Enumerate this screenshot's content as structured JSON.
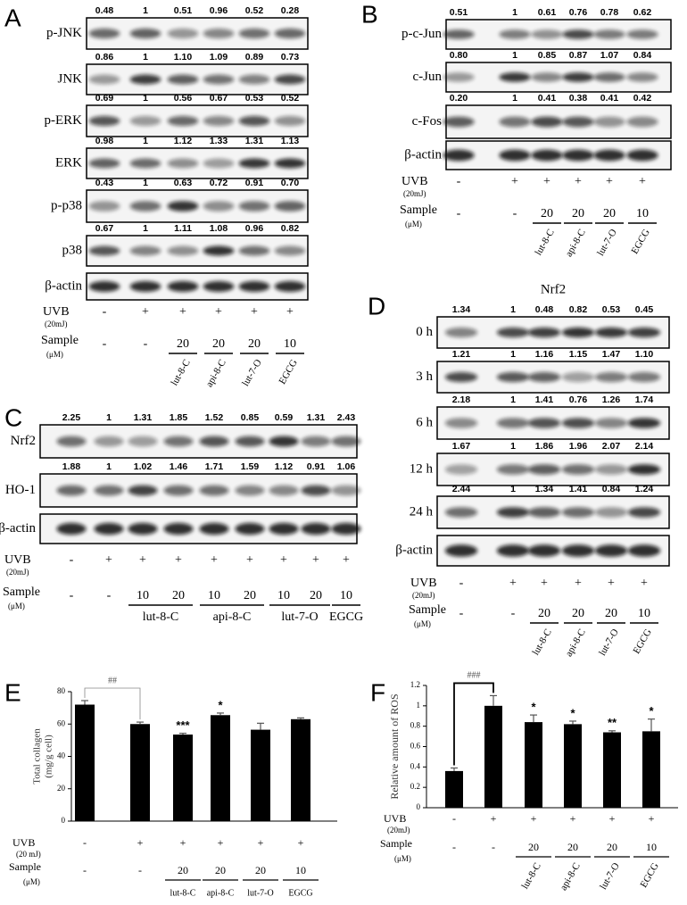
{
  "blots": [
    {
      "label": "A",
      "rows": [
        {
          "name": "p-JNK",
          "values": [
            "0.48",
            "1",
            "0.51",
            "0.96",
            "0.52",
            "0.28"
          ]
        },
        {
          "name": "JNK",
          "values": [
            "0.86",
            "1",
            "1.10",
            "1.09",
            "0.89",
            "0.73"
          ]
        },
        {
          "name": "p-ERK",
          "values": [
            "0.69",
            "1",
            "0.56",
            "0.67",
            "0.53",
            "0.52"
          ]
        },
        {
          "name": "ERK",
          "values": [
            "0.98",
            "1",
            "1.12",
            "1.33",
            "1.31",
            "1.13"
          ]
        },
        {
          "name": "p-p38",
          "values": [
            "0.43",
            "1",
            "0.63",
            "0.72",
            "0.91",
            "0.70"
          ]
        },
        {
          "name": "p38",
          "values": [
            "0.67",
            "1",
            "1.11",
            "1.08",
            "0.96",
            "0.82"
          ]
        },
        {
          "name": "β-actin"
        }
      ],
      "uvb": {
        "label": "UVB",
        "unit": "(20mJ)",
        "values": [
          "-",
          "+",
          "+",
          "+",
          "+",
          "+"
        ]
      },
      "sample": {
        "label": "Sample",
        "unit": "(μM)",
        "values": [
          "-",
          "-",
          "20",
          "20",
          "20",
          "10"
        ]
      },
      "groups": [
        "lut-8-C",
        "api-8-C",
        "lut-7-O",
        "EGCG"
      ]
    },
    {
      "label": "B",
      "rows": [
        {
          "name": "p-c-Jun",
          "values": [
            "0.51",
            "1",
            "0.61",
            "0.76",
            "0.78",
            "0.62"
          ]
        },
        {
          "name": "c-Jun",
          "values": [
            "0.80",
            "1",
            "0.85",
            "0.87",
            "1.07",
            "0.84"
          ]
        },
        {
          "name": "c-Fos",
          "values": [
            "0.20",
            "1",
            "0.41",
            "0.38",
            "0.41",
            "0.42"
          ]
        },
        {
          "name": "β-actin"
        }
      ],
      "uvb": {
        "label": "UVB",
        "unit": "(20mJ)",
        "values": [
          "-",
          "+",
          "+",
          "+",
          "+",
          "+"
        ]
      },
      "sample": {
        "label": "Sample",
        "unit": "(μM)",
        "values": [
          "-",
          "-",
          "20",
          "20",
          "20",
          "10"
        ]
      },
      "groups": [
        "lut-8-C",
        "api-8-C",
        "lut-7-O",
        "EGCG"
      ]
    },
    {
      "label": "C",
      "rows": [
        {
          "name": "Nrf2",
          "values": [
            "2.25",
            "1",
            "1.31",
            "1.85",
            "1.52",
            "0.85",
            "0.59",
            "1.31",
            "2.43"
          ]
        },
        {
          "name": "HO-1",
          "values": [
            "1.88",
            "1",
            "1.02",
            "1.46",
            "1.71",
            "1.59",
            "1.12",
            "0.91",
            "1.06"
          ]
        },
        {
          "name": "β-actin"
        }
      ],
      "uvb": {
        "label": "UVB",
        "unit": "(20mJ)",
        "values": [
          "-",
          "+",
          "+",
          "+",
          "+",
          "+",
          "+",
          "+",
          "+"
        ]
      },
      "sample": {
        "label": "Sample",
        "unit": "(μM)",
        "values": [
          "-",
          "-",
          "10",
          "20",
          "10",
          "20",
          "10",
          "20",
          "10"
        ]
      },
      "groups": [
        "lut-8-C",
        "api-8-C",
        "lut-7-O",
        "EGCG"
      ]
    },
    {
      "label": "D",
      "title": "Nrf2",
      "rows": [
        {
          "name": "0 h",
          "values": [
            "1.34",
            "1",
            "0.48",
            "0.82",
            "0.53",
            "0.45"
          ]
        },
        {
          "name": "3 h",
          "values": [
            "1.21",
            "1",
            "1.16",
            "1.15",
            "1.47",
            "1.10"
          ]
        },
        {
          "name": "6 h",
          "values": [
            "2.18",
            "1",
            "1.41",
            "0.76",
            "1.26",
            "1.74"
          ]
        },
        {
          "name": "12 h",
          "values": [
            "1.67",
            "1",
            "1.86",
            "1.96",
            "2.07",
            "2.14"
          ]
        },
        {
          "name": "24 h",
          "values": [
            "2.44",
            "1",
            "1.34",
            "1.41",
            "0.84",
            "1.24"
          ]
        },
        {
          "name": "β-actin"
        }
      ],
      "uvb": {
        "label": "UVB",
        "unit": "(20mJ)",
        "values": [
          "-",
          "+",
          "+",
          "+",
          "+",
          "+"
        ]
      },
      "sample": {
        "label": "Sample",
        "unit": "(μM)",
        "values": [
          "-",
          "-",
          "20",
          "20",
          "20",
          "10"
        ]
      },
      "groups": [
        "lut-8-C",
        "api-8-C",
        "lut-7-O",
        "EGCG"
      ]
    }
  ],
  "chart_data": [
    {
      "type": "bar",
      "label": "E",
      "y_label": "Total collagen",
      "y_unit": "(mg/g cell)",
      "values": [
        72,
        60,
        53.5,
        65.5,
        56.5,
        63
      ],
      "errors": [
        2.5,
        1.2,
        0.8,
        1.3,
        4,
        0.8
      ],
      "color": "#000000",
      "ylim": [
        0,
        80
      ],
      "yticks": [
        0,
        20,
        40,
        60,
        80
      ],
      "comparison": "##",
      "stars": [
        null,
        null,
        "***",
        "*",
        null,
        null
      ],
      "uvb": {
        "label": "UVB",
        "unit": "(20 mJ)",
        "values": [
          "-",
          "+",
          "+",
          "+",
          "+",
          "+"
        ]
      },
      "sample": {
        "label": "Sample",
        "unit": "(μM)",
        "values": [
          "-",
          "-",
          "20",
          "20",
          "20",
          "10"
        ]
      },
      "groups": [
        "lut-8-C",
        "api-8-C",
        "lut-7-O",
        "EGCG"
      ]
    },
    {
      "type": "bar",
      "label": "F",
      "y_label": "Relative amount of ROS",
      "values": [
        0.36,
        1.0,
        0.84,
        0.82,
        0.74,
        0.75
      ],
      "errors": [
        0.03,
        0.1,
        0.07,
        0.03,
        0.015,
        0.12
      ],
      "color": "#000000",
      "ylim": [
        0,
        1.2
      ],
      "yticks": [
        0,
        0.2,
        0.4,
        0.6,
        0.8,
        1,
        1.2
      ],
      "comparison": "###",
      "stars": [
        null,
        null,
        "*",
        "*",
        "**",
        "*"
      ],
      "uvb": {
        "label": "UVB",
        "unit": "(20mJ)",
        "values": [
          "-",
          "+",
          "+",
          "+",
          "+",
          "+"
        ]
      },
      "sample": {
        "label": "Sample",
        "unit": "(μM)",
        "values": [
          "-",
          "-",
          "20",
          "20",
          "20",
          "10"
        ]
      },
      "groups": [
        "lut-8-C",
        "api-8-C",
        "lut-7-O",
        "EGCG"
      ]
    }
  ]
}
